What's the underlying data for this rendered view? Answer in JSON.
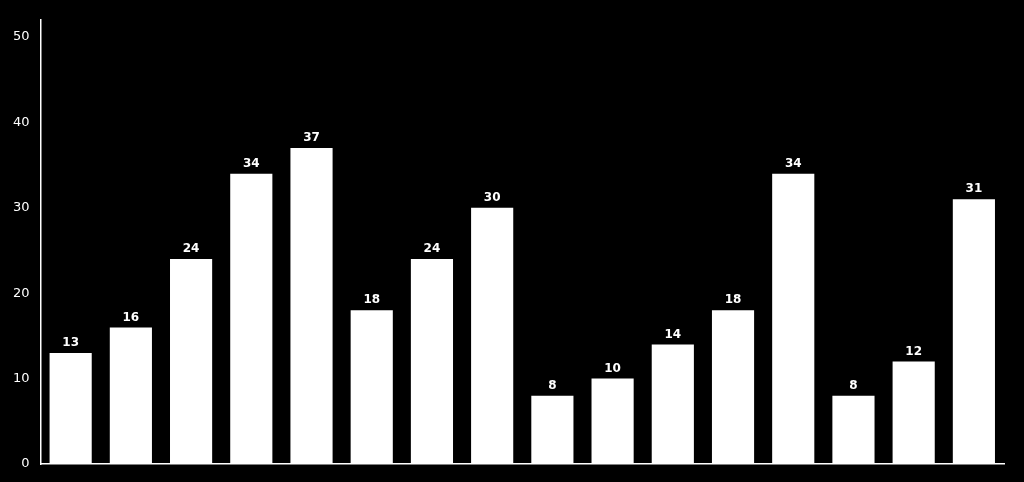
{
  "chart_data": {
    "type": "bar",
    "categories": [
      null,
      null,
      null,
      null,
      null,
      null,
      null,
      null,
      null,
      null,
      null,
      null,
      null,
      null,
      null,
      null
    ],
    "values": [
      13,
      16,
      24,
      34,
      37,
      18,
      24,
      30,
      8,
      10,
      14,
      18,
      34,
      8,
      12,
      31
    ],
    "color": "#ffffff",
    "ylim": [
      0,
      52
    ],
    "yticks": [
      0,
      10,
      20,
      30,
      40,
      50
    ],
    "grid": false,
    "data_labels": true,
    "tick_labels": "y"
  }
}
